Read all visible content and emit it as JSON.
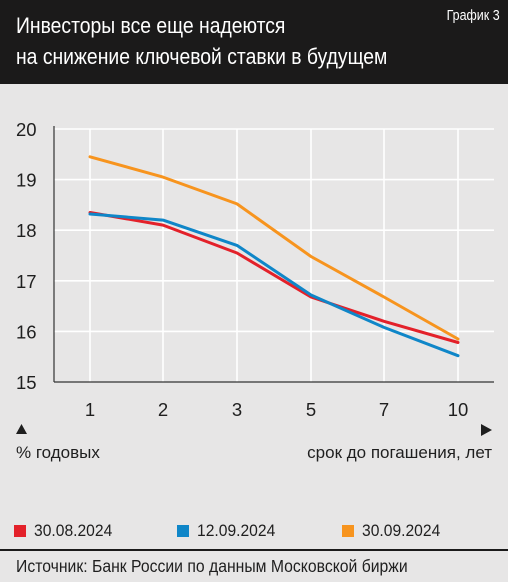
{
  "header": {
    "title_line1": "Инвесторы все еще надеются",
    "title_line2": "на снижение ключевой ставки в будущем",
    "chart_number": "График 3"
  },
  "chart_data": {
    "type": "line",
    "title": "Инвесторы все еще надеются на снижение ключевой ставки в будущем",
    "categories": [
      "1",
      "2",
      "3",
      "5",
      "7",
      "10"
    ],
    "xlabel": "срок до погашения, лет",
    "ylabel": "% годовых",
    "ylim": [
      15,
      20
    ],
    "yticks": [
      "15",
      "16",
      "17",
      "18",
      "19",
      "20"
    ],
    "grid": true,
    "legend_position": "bottom",
    "series": [
      {
        "name": "30.08.2024",
        "color": "#e3212a",
        "values": [
          18.35,
          18.1,
          17.55,
          16.68,
          16.2,
          15.78
        ]
      },
      {
        "name": "12.09.2024",
        "color": "#0f86c8",
        "values": [
          18.32,
          18.2,
          17.7,
          16.72,
          16.08,
          15.52
        ]
      },
      {
        "name": "30.09.2024",
        "color": "#f7941e",
        "values": [
          19.45,
          19.05,
          18.52,
          17.48,
          16.68,
          15.85
        ]
      }
    ]
  },
  "source": "Источник: Банк России по данным Московской биржи"
}
